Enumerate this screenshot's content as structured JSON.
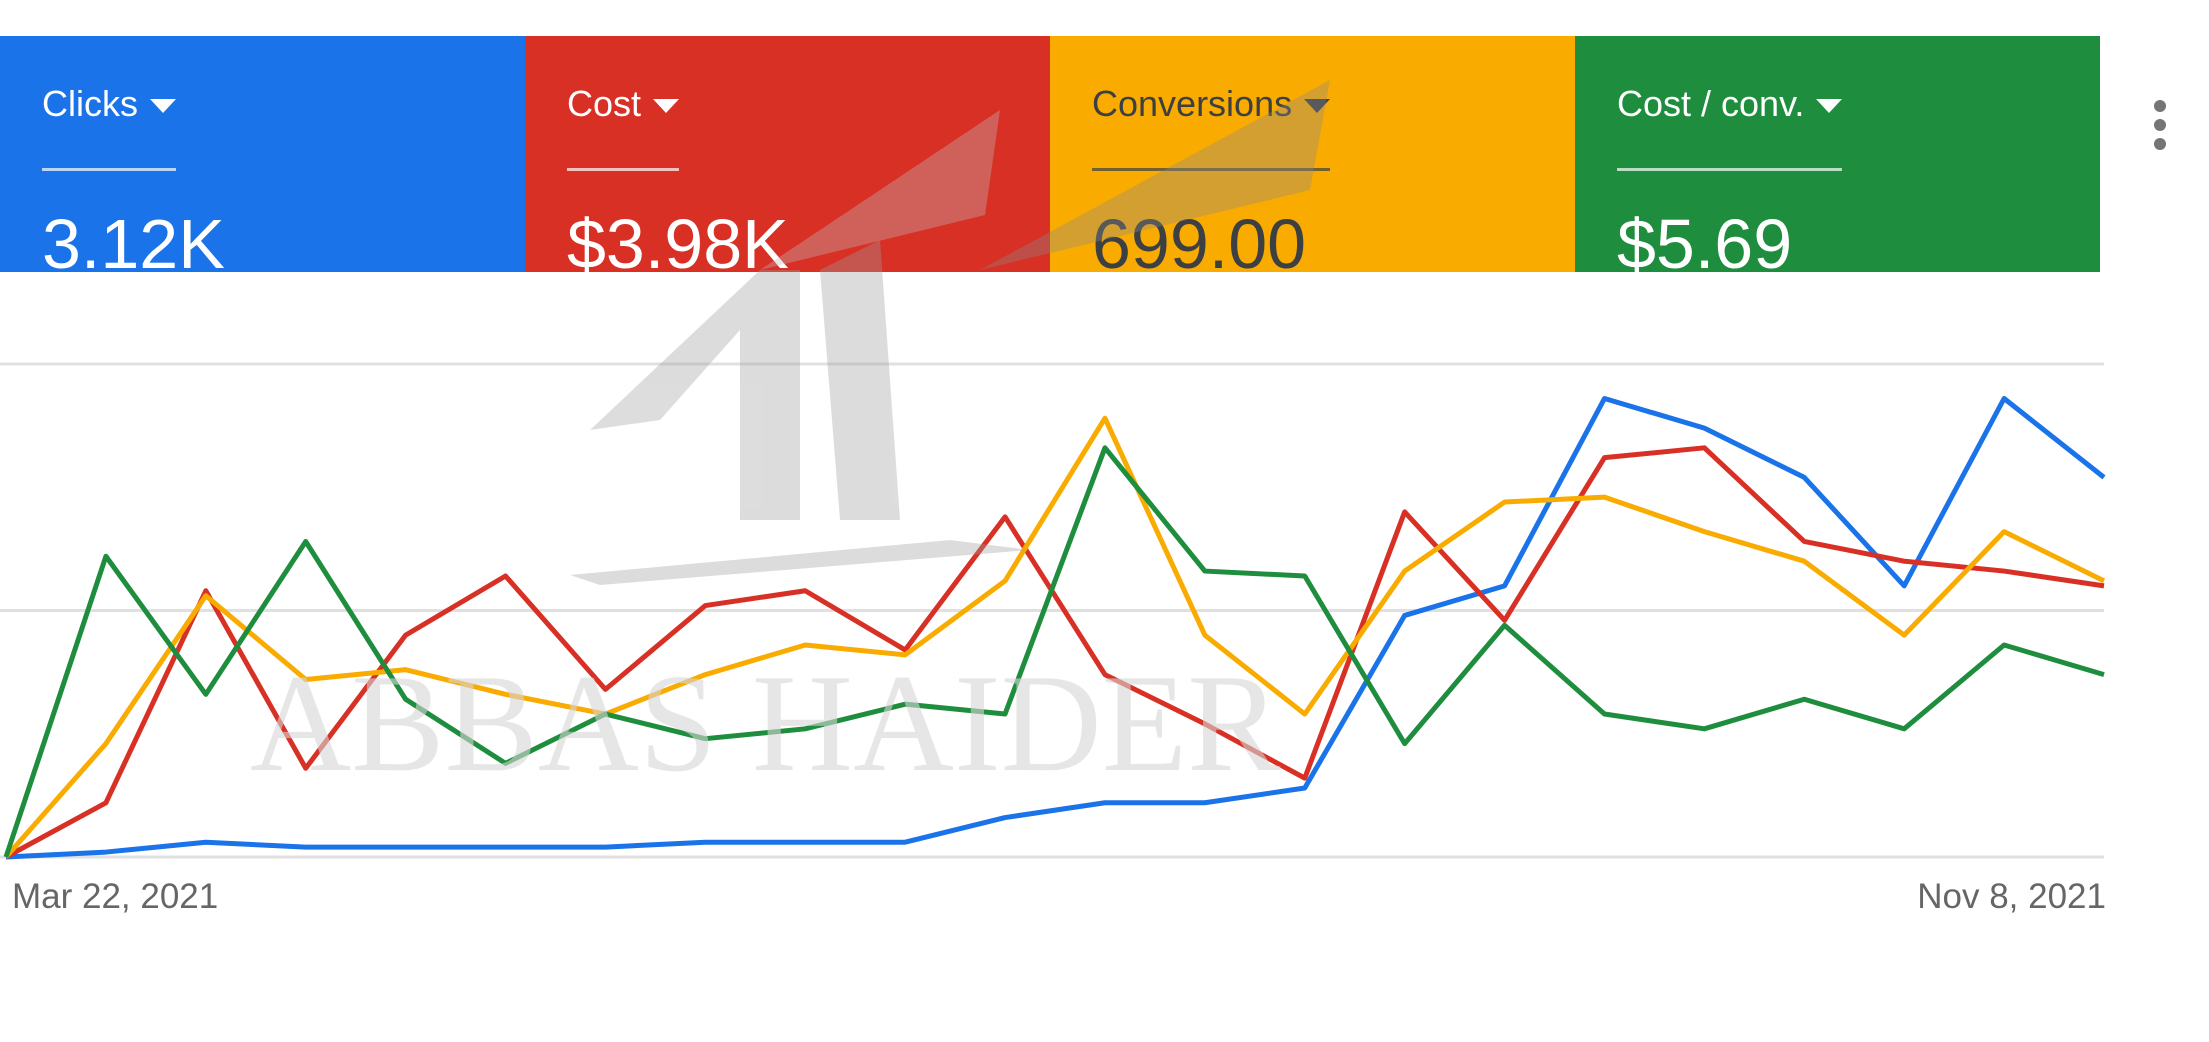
{
  "metrics": [
    {
      "label": "Clicks",
      "value": "3.12K",
      "bg": "#1a73e8",
      "fg": "#ffffff",
      "line_color": "#1a73e8"
    },
    {
      "label": "Cost",
      "value": "$3.98K",
      "bg": "#d93025",
      "fg": "#ffffff",
      "line_color": "#d93025"
    },
    {
      "label": "Conversions",
      "value": "699.00",
      "bg": "#f9ab00",
      "fg": "#3c4043",
      "line_color": "#f9ab00"
    },
    {
      "label": "Cost / conv.",
      "value": "$5.69",
      "bg": "#1e8e3e",
      "fg": "#ffffff",
      "line_color": "#1e8e3e"
    }
  ],
  "menu_icon": "more-vert-icon",
  "watermark": {
    "text": "ABBAS HAIDER",
    "logo": "rising-arrow-logo"
  },
  "chart_data": {
    "type": "line",
    "x_start_label": "Mar 22, 2021",
    "x_end_label": "Nov 8, 2021",
    "x": [
      0,
      1,
      2,
      3,
      4,
      5,
      6,
      7,
      8,
      9,
      10,
      11,
      12,
      13,
      14,
      15,
      16,
      17,
      18,
      19,
      20,
      21
    ],
    "ylim": [
      0,
      100
    ],
    "grid": true,
    "legend": "none",
    "series": [
      {
        "name": "Clicks",
        "color": "#1a73e8",
        "values": [
          0,
          1,
          3,
          2,
          2,
          2,
          2,
          3,
          3,
          3,
          8,
          11,
          11,
          14,
          49,
          55,
          93,
          87,
          77,
          55,
          93,
          77
        ]
      },
      {
        "name": "Cost",
        "color": "#d93025",
        "values": [
          0,
          11,
          54,
          18,
          45,
          57,
          34,
          51,
          54,
          42,
          69,
          37,
          27,
          16,
          70,
          48,
          81,
          83,
          64,
          60,
          58,
          55
        ]
      },
      {
        "name": "Conversions",
        "color": "#f9ab00",
        "values": [
          0,
          23,
          53,
          36,
          38,
          33,
          29,
          37,
          43,
          41,
          56,
          89,
          45,
          29,
          58,
          72,
          73,
          66,
          60,
          45,
          66,
          56
        ]
      },
      {
        "name": "Cost / conv.",
        "color": "#1e8e3e",
        "values": [
          0,
          61,
          33,
          64,
          32,
          19,
          29,
          24,
          26,
          31,
          29,
          83,
          58,
          57,
          23,
          47,
          29,
          26,
          32,
          26,
          43,
          37
        ]
      }
    ]
  }
}
